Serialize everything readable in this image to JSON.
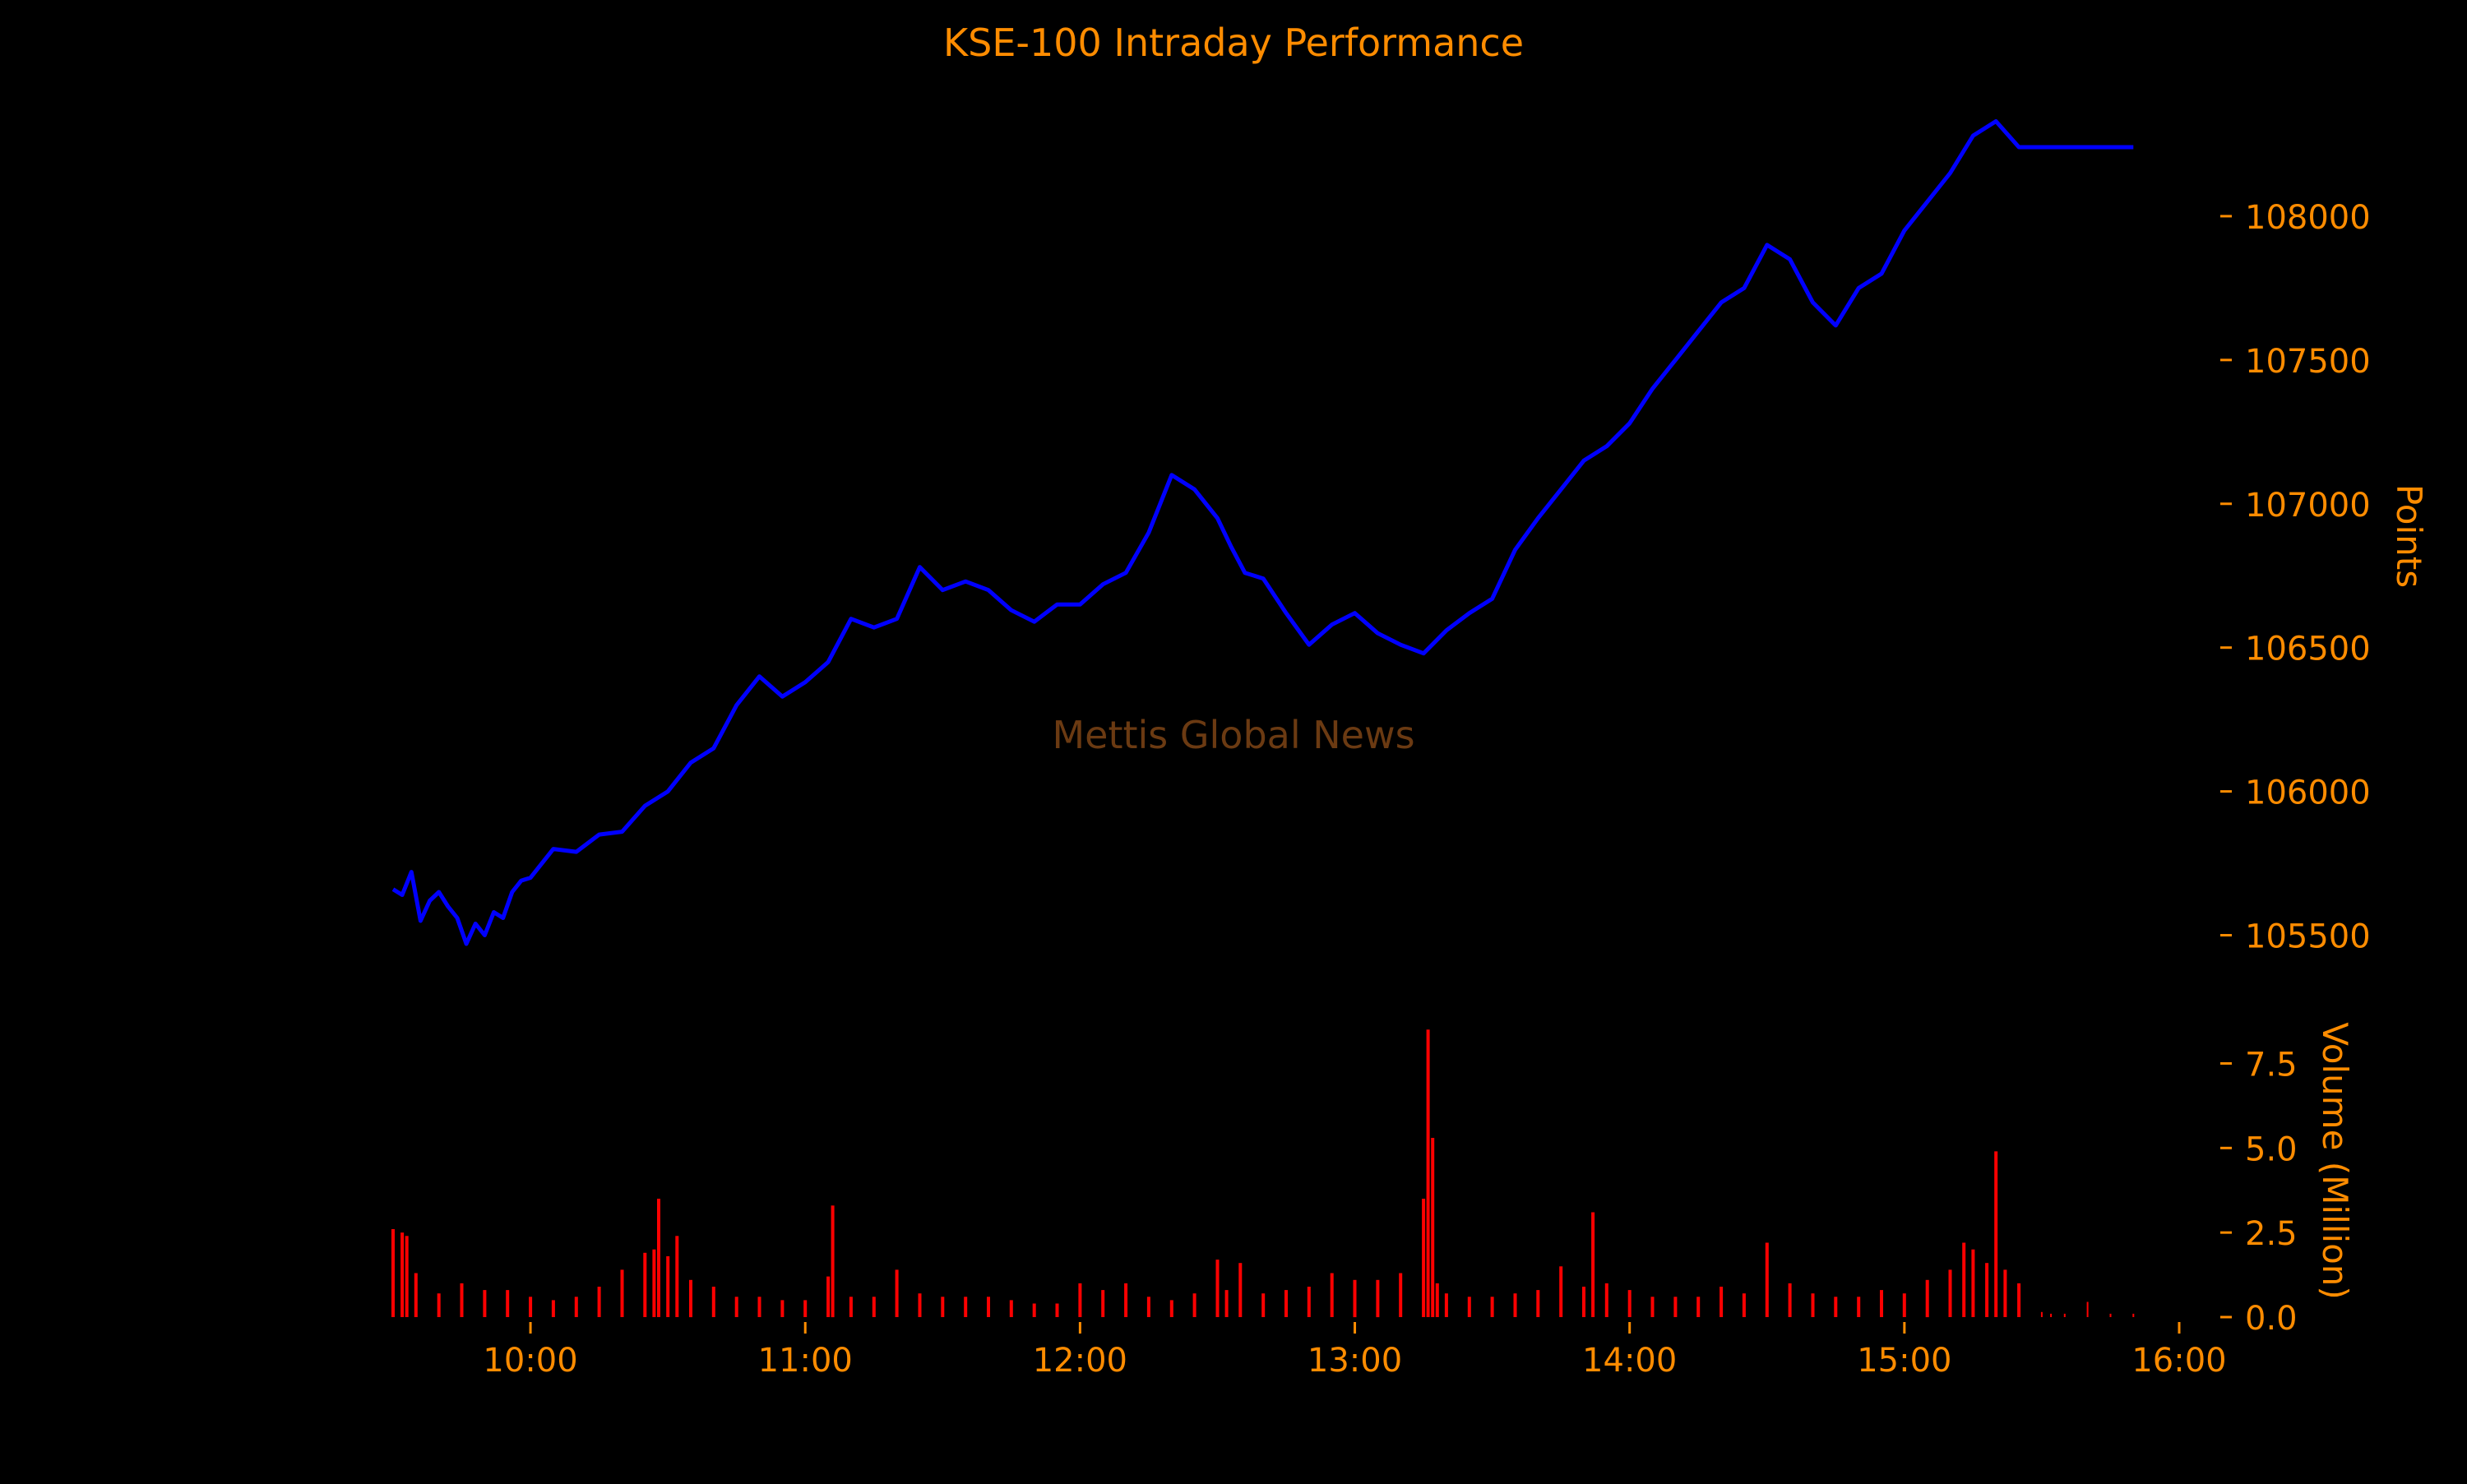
{
  "colors": {
    "background": "#000000",
    "text": "#ff8c00",
    "price_line": "#0000ff",
    "volume": "#ff0000",
    "watermark": "#6b3a12"
  },
  "chart_data": [
    {
      "type": "line",
      "title": "KSE-100 Intraday Performance",
      "watermark": "Mettis Global News",
      "ylabel": "Points",
      "y_axis_side": "right",
      "ylim": [
        105350,
        108380
      ],
      "yticks": [
        105500,
        106000,
        106500,
        107000,
        107500,
        108000
      ],
      "ytick_labels": [
        "105500",
        "106000",
        "106500",
        "107000",
        "107500",
        "108000"
      ],
      "grid": false,
      "series": [
        {
          "x": [
            "09:30",
            "09:32",
            "09:34",
            "09:36",
            "09:38",
            "09:40",
            "09:42",
            "09:44",
            "09:46",
            "09:48",
            "09:50",
            "09:52",
            "09:54",
            "09:56",
            "09:58",
            "10:00",
            "10:05",
            "10:10",
            "10:15",
            "10:20",
            "10:25",
            "10:30",
            "10:35",
            "10:40",
            "10:45",
            "10:50",
            "10:55",
            "11:00",
            "11:05",
            "11:10",
            "11:15",
            "11:20",
            "11:25",
            "11:30",
            "11:35",
            "11:40",
            "11:45",
            "11:50",
            "11:55",
            "12:00",
            "12:05",
            "12:10",
            "12:15",
            "12:20",
            "12:25",
            "12:30",
            "12:33",
            "12:36",
            "12:40",
            "12:45",
            "12:50",
            "12:55",
            "13:00",
            "13:05",
            "13:10",
            "13:15",
            "13:20",
            "13:25",
            "13:30",
            "13:35",
            "13:40",
            "13:45",
            "13:50",
            "13:55",
            "14:00",
            "14:05",
            "14:10",
            "14:15",
            "14:20",
            "14:25",
            "14:30",
            "14:35",
            "14:40",
            "14:45",
            "14:50",
            "14:55",
            "15:00",
            "15:05",
            "15:10",
            "15:15",
            "15:20",
            "15:25",
            "15:30",
            "15:35",
            "15:40",
            "15:45",
            "15:50"
          ],
          "values": [
            105660,
            105640,
            105720,
            105550,
            105620,
            105650,
            105600,
            105560,
            105470,
            105540,
            105500,
            105580,
            105560,
            105650,
            105690,
            105700,
            105800,
            105790,
            105850,
            105860,
            105950,
            106000,
            106100,
            106150,
            106300,
            106400,
            106330,
            106380,
            106450,
            106600,
            106570,
            106600,
            106780,
            106700,
            106730,
            106700,
            106630,
            106590,
            106650,
            106650,
            106720,
            106760,
            106900,
            107100,
            107050,
            106950,
            106850,
            106760,
            106740,
            106620,
            106510,
            106580,
            106620,
            106550,
            106510,
            106480,
            106560,
            106620,
            106670,
            106840,
            106950,
            107050,
            107150,
            107200,
            107280,
            107400,
            107500,
            107600,
            107700,
            107750,
            107900,
            107850,
            107700,
            107620,
            107750,
            107800,
            107950,
            108050,
            108150,
            108280,
            108330,
            108240,
            108240,
            108240,
            108240,
            108240,
            108240
          ]
        }
      ]
    },
    {
      "type": "bar",
      "ylabel": "Volume (Million)",
      "y_axis_side": "right",
      "ylim": [
        0,
        8.8
      ],
      "yticks": [
        0.0,
        2.5,
        5.0,
        7.5
      ],
      "ytick_labels": [
        "0.0",
        "2.5",
        "5.0",
        "7.5"
      ],
      "xticks": [
        "10:00",
        "11:00",
        "12:00",
        "13:00",
        "14:00",
        "15:00",
        "16:00"
      ],
      "grid": false,
      "series": [
        {
          "x": [
            "09:30",
            "09:32",
            "09:33",
            "09:35",
            "09:40",
            "09:45",
            "09:50",
            "09:55",
            "10:00",
            "10:05",
            "10:10",
            "10:15",
            "10:20",
            "10:25",
            "10:27",
            "10:28",
            "10:30",
            "10:32",
            "10:35",
            "10:40",
            "10:45",
            "10:50",
            "10:55",
            "11:00",
            "11:05",
            "11:06",
            "11:10",
            "11:15",
            "11:20",
            "11:25",
            "11:30",
            "11:35",
            "11:40",
            "11:45",
            "11:50",
            "11:55",
            "12:00",
            "12:05",
            "12:10",
            "12:15",
            "12:20",
            "12:25",
            "12:30",
            "12:32",
            "12:35",
            "12:40",
            "12:45",
            "12:50",
            "12:55",
            "13:00",
            "13:05",
            "13:10",
            "13:15",
            "13:16",
            "13:17",
            "13:18",
            "13:20",
            "13:25",
            "13:30",
            "13:35",
            "13:40",
            "13:45",
            "13:50",
            "13:52",
            "13:55",
            "14:00",
            "14:05",
            "14:10",
            "14:15",
            "14:20",
            "14:25",
            "14:30",
            "14:35",
            "14:40",
            "14:45",
            "14:50",
            "14:55",
            "15:00",
            "15:05",
            "15:10",
            "15:13",
            "15:15",
            "15:18",
            "15:20",
            "15:22",
            "15:25",
            "15:30",
            "15:32",
            "15:35",
            "15:40",
            "15:45",
            "15:50"
          ],
          "values": [
            2.6,
            2.5,
            2.4,
            1.3,
            0.7,
            1.0,
            0.8,
            0.8,
            0.6,
            0.5,
            0.6,
            0.9,
            1.4,
            1.9,
            2.0,
            3.5,
            1.8,
            2.4,
            1.1,
            0.9,
            0.6,
            0.6,
            0.5,
            0.5,
            1.2,
            3.3,
            0.6,
            0.6,
            1.4,
            0.7,
            0.6,
            0.6,
            0.6,
            0.5,
            0.4,
            0.4,
            1.0,
            0.8,
            1.0,
            0.6,
            0.5,
            0.7,
            1.7,
            0.8,
            1.6,
            0.7,
            0.8,
            0.9,
            1.3,
            1.1,
            1.1,
            1.3,
            3.5,
            8.5,
            5.3,
            1.0,
            0.7,
            0.6,
            0.6,
            0.7,
            0.8,
            1.5,
            0.9,
            3.1,
            1.0,
            0.8,
            0.6,
            0.6,
            0.6,
            0.9,
            0.7,
            2.2,
            1.0,
            0.7,
            0.6,
            0.6,
            0.8,
            0.7,
            1.1,
            1.4,
            2.2,
            2.0,
            1.6,
            4.9,
            1.4,
            1.0,
            0.15,
            0.1,
            0.1,
            0.45,
            0.1,
            0.1
          ]
        }
      ]
    }
  ]
}
